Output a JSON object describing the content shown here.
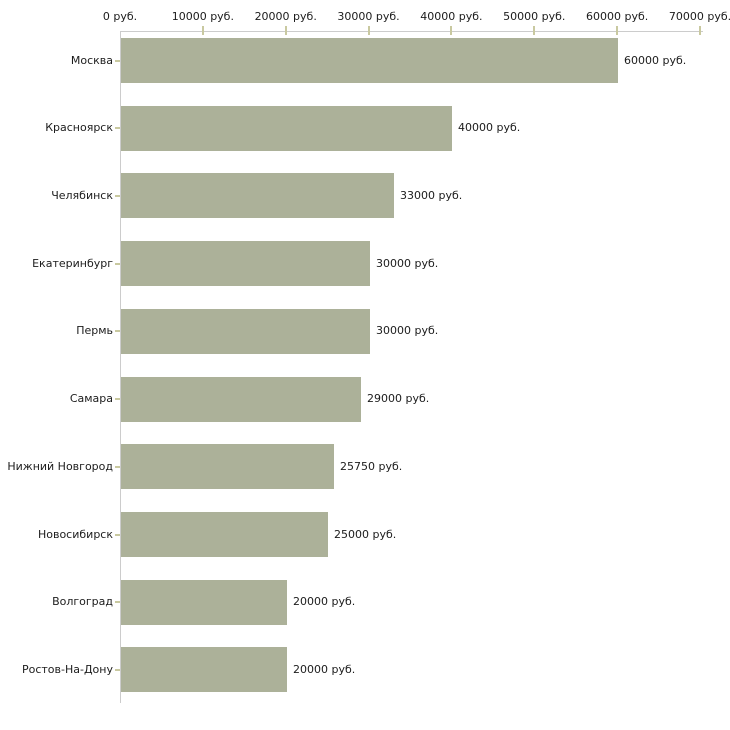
{
  "chart_data": {
    "type": "bar",
    "orientation": "horizontal",
    "title": "",
    "unit_suffix": " руб.",
    "categories": [
      "Москва",
      "Красноярск",
      "Челябинск",
      "Екатеринбург",
      "Пермь",
      "Самара",
      "Нижний Новгород",
      "Новосибирск",
      "Волгоград",
      "Ростов-На-Дону"
    ],
    "values": [
      60000,
      40000,
      33000,
      30000,
      30000,
      29000,
      25750,
      25000,
      20000,
      20000
    ],
    "value_labels": [
      "60000 руб.",
      "40000 руб.",
      "33000 руб.",
      "30000 руб.",
      "30000 руб.",
      "29000 руб.",
      "25750 руб.",
      "25000 руб.",
      "20000 руб.",
      "20000 руб."
    ],
    "x_axis": {
      "position": "top",
      "min": 0,
      "max": 70000,
      "tick_values": [
        0,
        10000,
        20000,
        30000,
        40000,
        50000,
        60000,
        70000
      ],
      "tick_labels": [
        "0 руб.",
        "10000 руб.",
        "20000 руб.",
        "30000 руб.",
        "40000 руб.",
        "50000 руб.",
        "60000 руб.",
        "70000 руб."
      ]
    },
    "grid": false,
    "legend": false,
    "colors": {
      "bar_fill": "#acb199",
      "axis_line": "#cccccc",
      "tick_mark": "#c9c9a0",
      "text": "#1c1c1c",
      "background": "#ffffff"
    }
  }
}
